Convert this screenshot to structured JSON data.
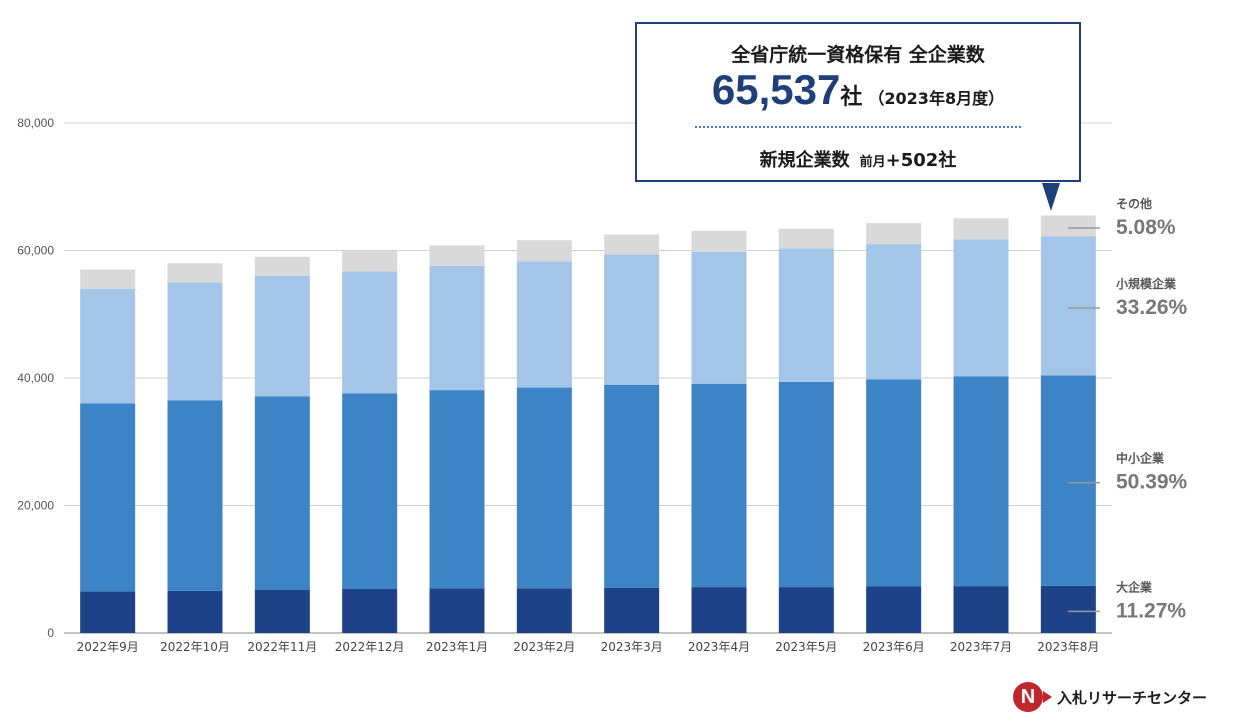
{
  "summary": {
    "title": "全省庁統一資格保有 全企業数",
    "total": "65,537",
    "unit": "社",
    "period": "（2023年8月度）",
    "new_label": "新規企業数",
    "new_note": "前月",
    "new_value": "+502社"
  },
  "brand": {
    "logo_letter": "N",
    "name": "入札リサーチセンター"
  },
  "colors": {
    "large": "#1d4287",
    "medium": "#3d84c6",
    "small": "#a3c5e8",
    "other": "#d9d9d9",
    "accent": "#1f3f7a"
  },
  "chart_data": {
    "type": "bar",
    "stacked": true,
    "categories": [
      "2022年9月",
      "2022年10月",
      "2022年11月",
      "2022年12月",
      "2023年1月",
      "2023年2月",
      "2023年3月",
      "2023年4月",
      "2023年5月",
      "2023年6月",
      "2023年7月",
      "2023年8月"
    ],
    "series": [
      {
        "name": "大企業",
        "share": "11.27%",
        "values": [
          6500,
          6600,
          6800,
          6900,
          7000,
          7000,
          7100,
          7200,
          7200,
          7300,
          7350,
          7400
        ]
      },
      {
        "name": "中小企業",
        "share": "50.39%",
        "values": [
          29500,
          29900,
          30300,
          30700,
          31100,
          31500,
          31800,
          31900,
          32200,
          32500,
          32900,
          33000
        ]
      },
      {
        "name": "小規模企業",
        "share": "33.26%",
        "values": [
          18000,
          18500,
          18900,
          19100,
          19500,
          19800,
          20500,
          20700,
          20900,
          21200,
          21500,
          21800
        ]
      },
      {
        "name": "その他",
        "share": "5.08%",
        "values": [
          3000,
          3000,
          3000,
          3200,
          3200,
          3300,
          3100,
          3300,
          3100,
          3300,
          3300,
          3300
        ]
      }
    ],
    "y_ticks": [
      "0",
      "20,000",
      "40,000",
      "60,000",
      "80,000"
    ],
    "ylim": [
      0,
      80000
    ],
    "grid": true,
    "legend": "right"
  }
}
